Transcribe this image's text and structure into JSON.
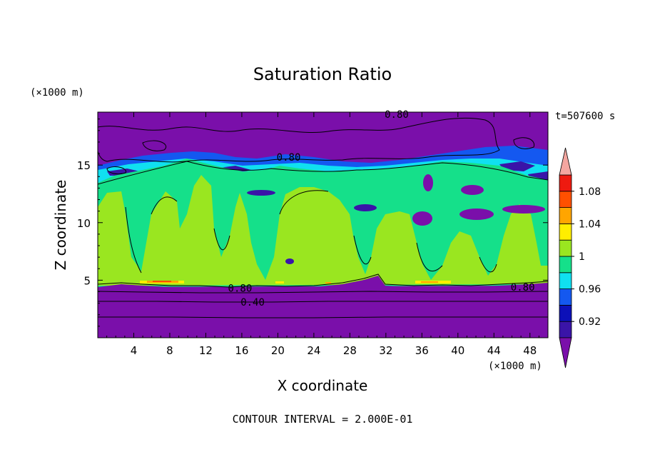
{
  "chart_data": {
    "type": "heatmap",
    "title": "Saturation Ratio",
    "xlabel": "X coordinate",
    "ylabel": "Z coordinate",
    "x_unit": "(×1000 m)",
    "y_unit": "(×1000 m)",
    "time_label": "t=507600 s",
    "footer": "CONTOUR INTERVAL = 2.000E-01",
    "xlim": [
      0,
      50
    ],
    "ylim": [
      0,
      19.6
    ],
    "x_ticks": [
      4,
      8,
      12,
      16,
      20,
      24,
      28,
      32,
      36,
      40,
      44,
      48
    ],
    "y_ticks": [
      5,
      10,
      15
    ],
    "colorbar": {
      "levels": [
        0.9,
        0.92,
        0.94,
        0.96,
        0.98,
        1,
        1.02,
        1.04,
        1.06,
        1.08,
        1.1
      ],
      "tick_labels": [
        "0.92",
        "0.96",
        "1",
        "1.04",
        "1.08"
      ],
      "tick_values": [
        0.92,
        0.96,
        1,
        1.04,
        1.08
      ],
      "colors": [
        "#7a0faa",
        "#3a14a8",
        "#0c10b8",
        "#1458f0",
        "#10e0f0",
        "#15e08a",
        "#9ae620",
        "#ffee00",
        "#ffa500",
        "#ff5000",
        "#ee1a10",
        "#f4a6a0"
      ]
    },
    "contour_labels": [
      {
        "text": "0.80",
        "x": 33.2,
        "y": 19.4
      },
      {
        "text": "0.80",
        "x": 21.2,
        "y": 15.7
      },
      {
        "text": "0.80",
        "x": 15.8,
        "y": 4.3
      },
      {
        "text": "0.40",
        "x": 17.2,
        "y": 3.1
      },
      {
        "text": "0.80",
        "x": 47.2,
        "y": 4.4
      }
    ],
    "regions": {
      "upper_dry_layer": {
        "z_range": [
          14,
          19.6
        ],
        "value": 0.9
      },
      "cloud_layer": {
        "z_range": [
          4.6,
          15.5
        ],
        "value": 0.99
      },
      "lower_dry_layer": {
        "z_range": [
          0,
          4.6
        ],
        "value": 0.4
      }
    }
  }
}
